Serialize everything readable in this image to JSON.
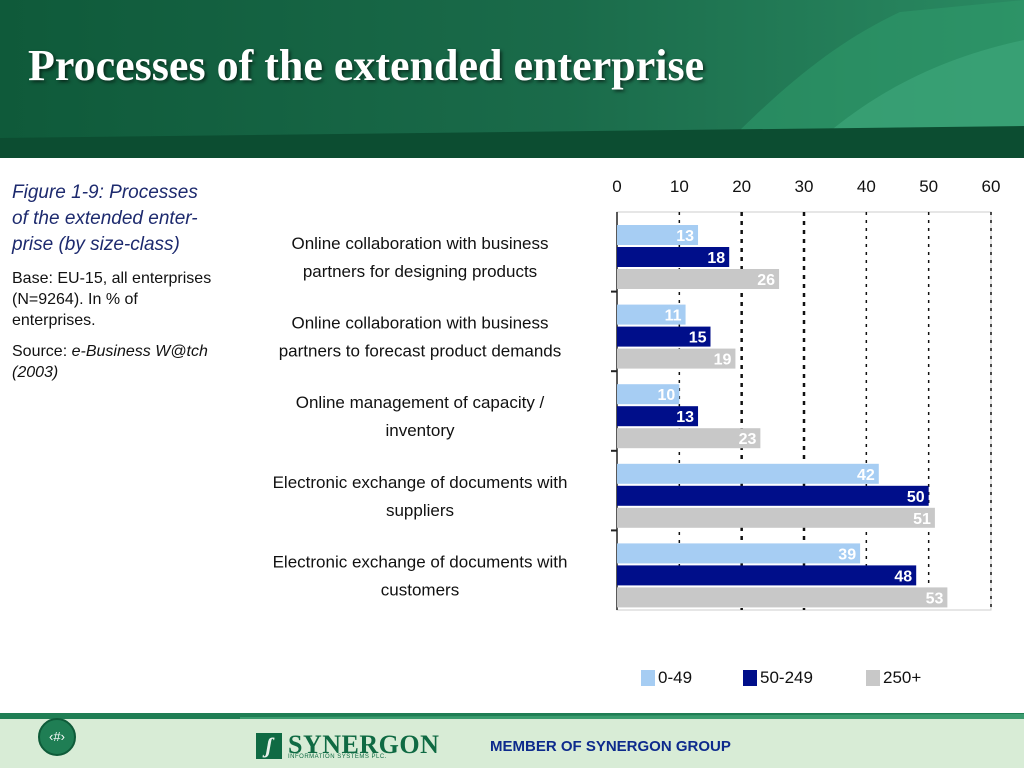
{
  "slide": {
    "title": "Processes of the extended enterprise",
    "page_number": "‹#›"
  },
  "caption": {
    "figure_title": "Figure 1-9: Processes of the extended enter-prise (by size-class)",
    "base": "Base: EU-15, all enterprises (N=9264). In % of enterprises.",
    "source_label": "Source: ",
    "source_name": "e-Business W@tch (2003)"
  },
  "footer": {
    "logo_text": "SYNERGON",
    "logo_subtext": "INFORMATION SYSTEMS PLC.",
    "member_text": "MEMBER OF SYNERGON GROUP"
  },
  "colors": {
    "header_green": "#1c6b4a",
    "series_0_49": "#a6cdf3",
    "series_50_249": "#000e8a",
    "series_250_plus": "#c8c8c8"
  },
  "chart_data": {
    "type": "bar",
    "orientation": "horizontal",
    "categories": [
      [
        "Online collaboration with business",
        "partners for designing products"
      ],
      [
        "Online collaboration with business",
        "partners to forecast product demands"
      ],
      [
        "Online management of capacity /",
        "inventory"
      ],
      [
        "Electronic exchange of documents with",
        "suppliers"
      ],
      [
        "Electronic exchange of documents with",
        "customers"
      ]
    ],
    "series": [
      {
        "name": "0-49",
        "color": "#a6cdf3",
        "values": [
          13,
          11,
          10,
          42,
          39
        ]
      },
      {
        "name": "50-249",
        "color": "#000e8a",
        "values": [
          18,
          15,
          13,
          50,
          48
        ]
      },
      {
        "name": "250+",
        "color": "#c8c8c8",
        "values": [
          26,
          19,
          23,
          51,
          53
        ]
      }
    ],
    "xlim": [
      0,
      60
    ],
    "xticks": [
      0,
      10,
      20,
      30,
      40,
      50,
      60
    ],
    "grid": true,
    "legend_position": "bottom"
  }
}
